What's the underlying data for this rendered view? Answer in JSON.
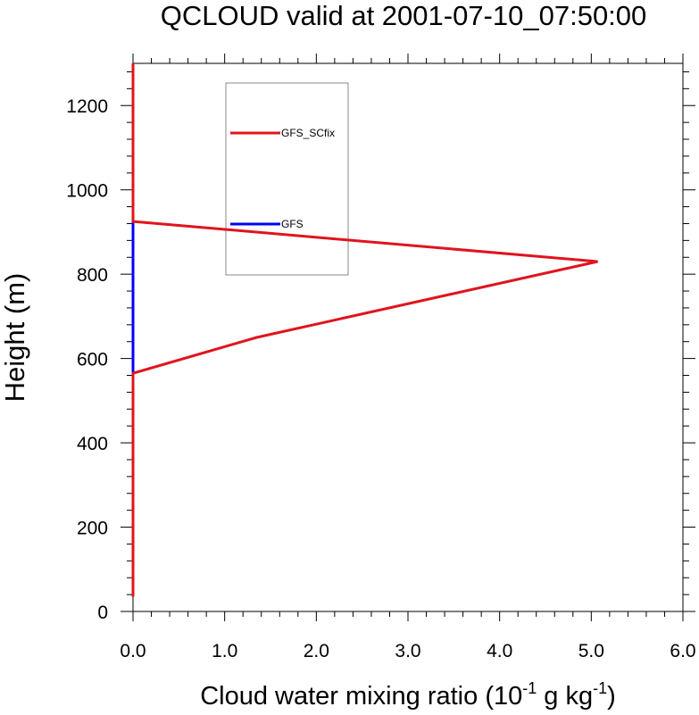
{
  "chart_data": {
    "type": "line",
    "title": "QCLOUD valid at 2001-07-10_07:50:00",
    "xlabel_main": "Cloud water mixing ratio (10",
    "xlabel_sup1": "-1",
    "xlabel_mid": " g kg",
    "xlabel_sup2": "-1",
    "xlabel_end": ")",
    "ylabel": "Height (m)",
    "xlim": [
      0.0,
      6.0
    ],
    "ylim": [
      0,
      1300
    ],
    "xticks": [
      0.0,
      1.0,
      2.0,
      3.0,
      4.0,
      5.0,
      6.0
    ],
    "xtick_labels": [
      "0.0",
      "1.0",
      "2.0",
      "3.0",
      "4.0",
      "5.0",
      "6.0"
    ],
    "yticks": [
      0,
      200,
      400,
      600,
      800,
      1000,
      1200
    ],
    "ytick_labels": [
      "0",
      "200",
      "400",
      "600",
      "800",
      "1000",
      "1200"
    ],
    "grid": false,
    "legend_position": "top-left inside",
    "series": [
      {
        "name": "GFS",
        "color": "#0000ff",
        "x": [
          0.0,
          0.0,
          0.0,
          0.0,
          0.0,
          0.0
        ],
        "y": [
          35,
          565,
          650,
          830,
          925,
          1300
        ]
      },
      {
        "name": "GFS_SCfix",
        "color": "#e0141e",
        "x": [
          0.0,
          0.0,
          1.35,
          5.07,
          0.0,
          0.0
        ],
        "y": [
          35,
          565,
          650,
          830,
          925,
          1300
        ]
      }
    ],
    "legend": [
      "GFS_SCfix",
      "GFS"
    ]
  }
}
